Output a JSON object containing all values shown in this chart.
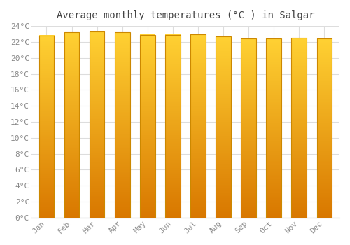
{
  "title": "Average monthly temperatures (°C ) in Salgar",
  "months": [
    "Jan",
    "Feb",
    "Mar",
    "Apr",
    "May",
    "Jun",
    "Jul",
    "Aug",
    "Sep",
    "Oct",
    "Nov",
    "Dec"
  ],
  "values": [
    22.8,
    23.2,
    23.3,
    23.2,
    22.9,
    22.9,
    23.0,
    22.7,
    22.4,
    22.4,
    22.5,
    22.4
  ],
  "bar_color": "#FFA500",
  "bar_gradient_left": "#E07800",
  "bar_gradient_right": "#FFD040",
  "bar_edge_color": "#CC8800",
  "background_color": "#FFFFFF",
  "plot_bg_color": "#FFFFFF",
  "grid_color": "#DDDDDD",
  "tick_color": "#888888",
  "title_color": "#444444",
  "ylim": [
    0,
    24
  ],
  "ytick_step": 2,
  "title_fontsize": 10,
  "tick_fontsize": 8,
  "bar_width": 0.6
}
